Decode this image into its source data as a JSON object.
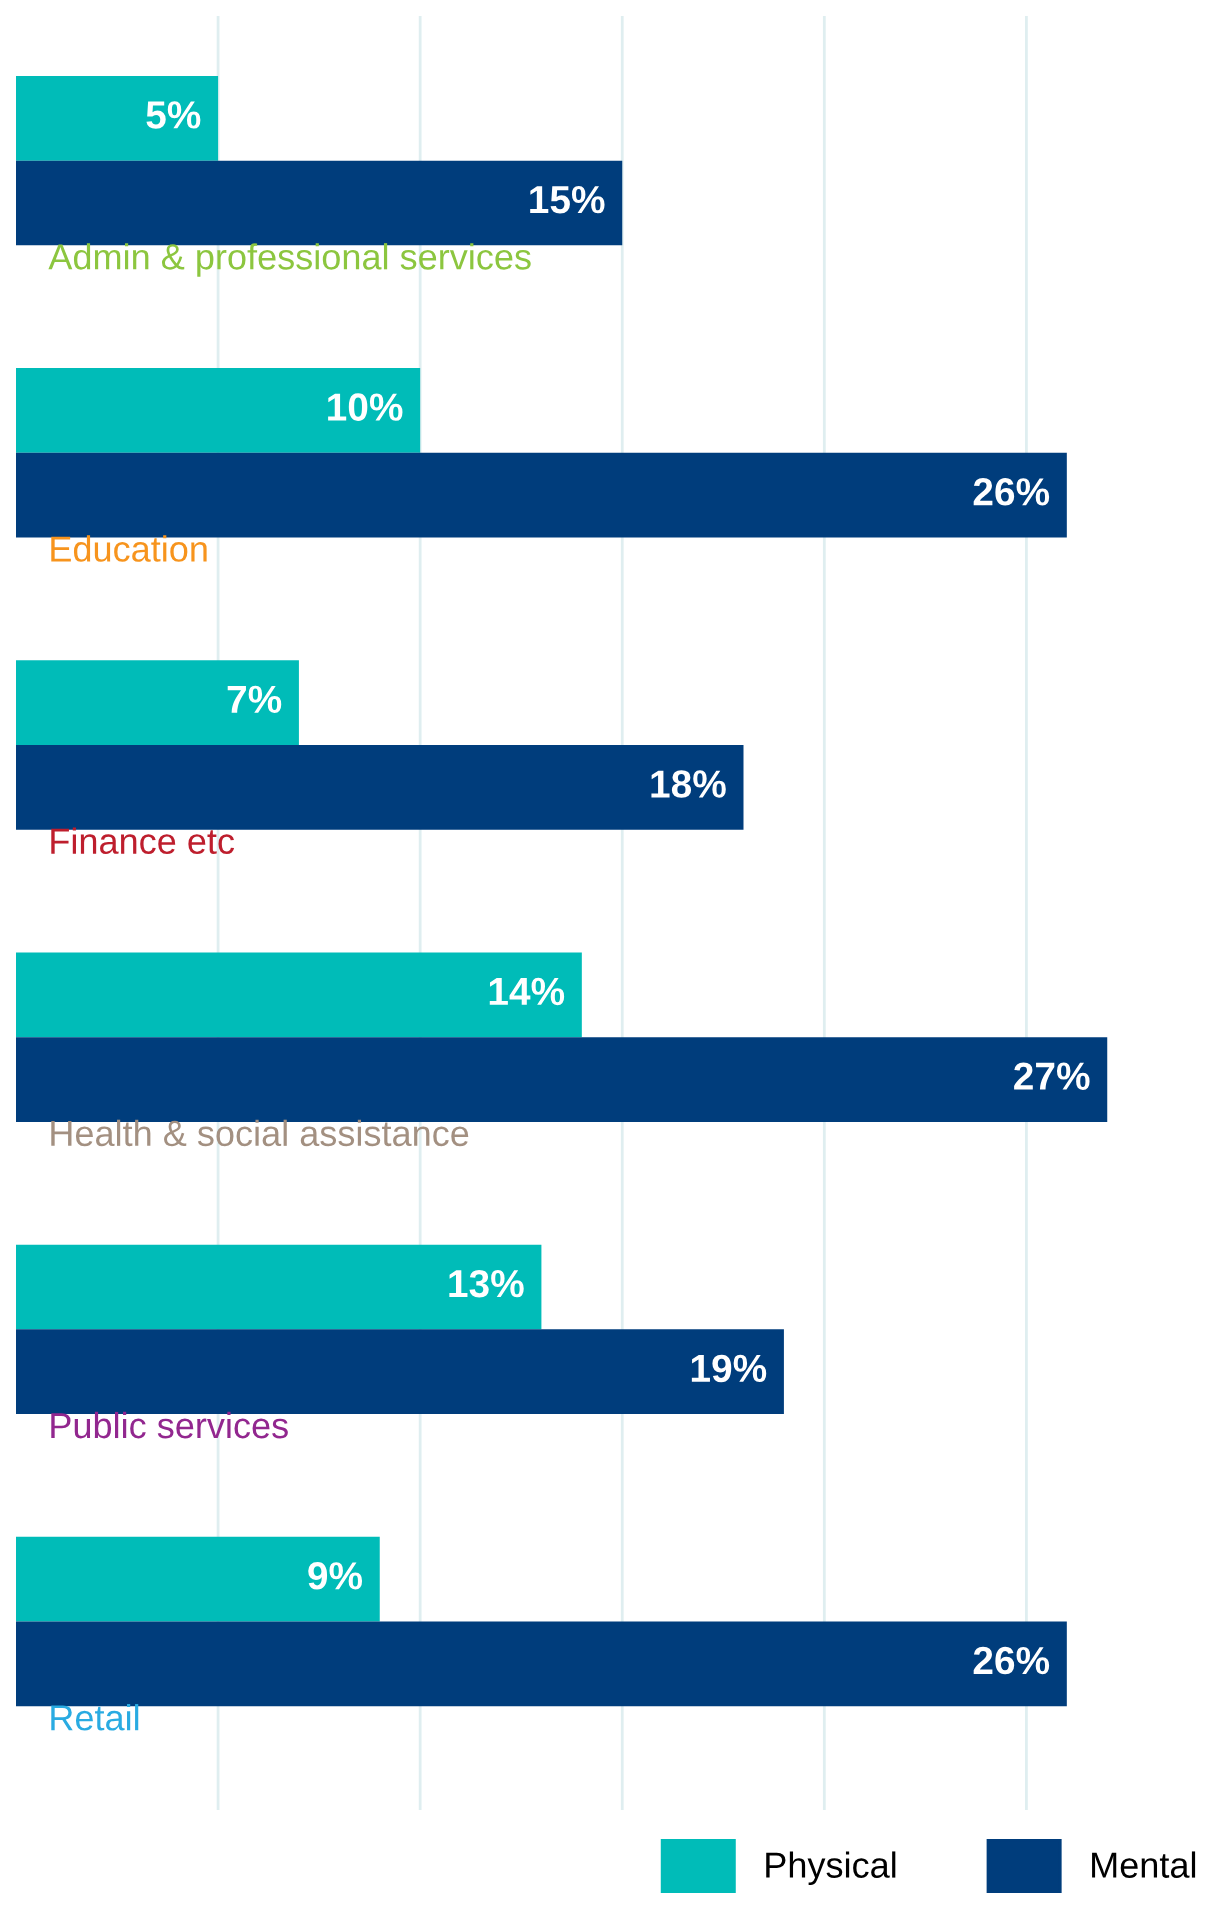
{
  "chart_data": {
    "type": "bar",
    "orientation": "horizontal",
    "categories": [
      "Admin & professional services",
      "Education",
      "Finance etc",
      "Health & social assistance",
      "Public services",
      "Retail"
    ],
    "series": [
      {
        "name": "Physical",
        "color": "#00bcb8",
        "values": [
          5,
          10,
          7,
          14,
          13,
          9
        ],
        "value_labels": [
          "5%",
          "10%",
          "7%",
          "14%",
          "13%",
          "9%"
        ]
      },
      {
        "name": "Mental",
        "color": "#003d7c",
        "values": [
          15,
          26,
          18,
          27,
          19,
          26
        ],
        "value_labels": [
          "15%",
          "26%",
          "18%",
          "27%",
          "19%",
          "26%"
        ]
      }
    ],
    "xticks": [
      {
        "value": 5,
        "label": null
      },
      {
        "value": 10,
        "label": null
      },
      {
        "value": 15,
        "label": null
      },
      {
        "value": 20,
        "label": null
      },
      {
        "value": 25,
        "label": null
      }
    ],
    "grid": "x",
    "legend": "bottom right"
  }
}
